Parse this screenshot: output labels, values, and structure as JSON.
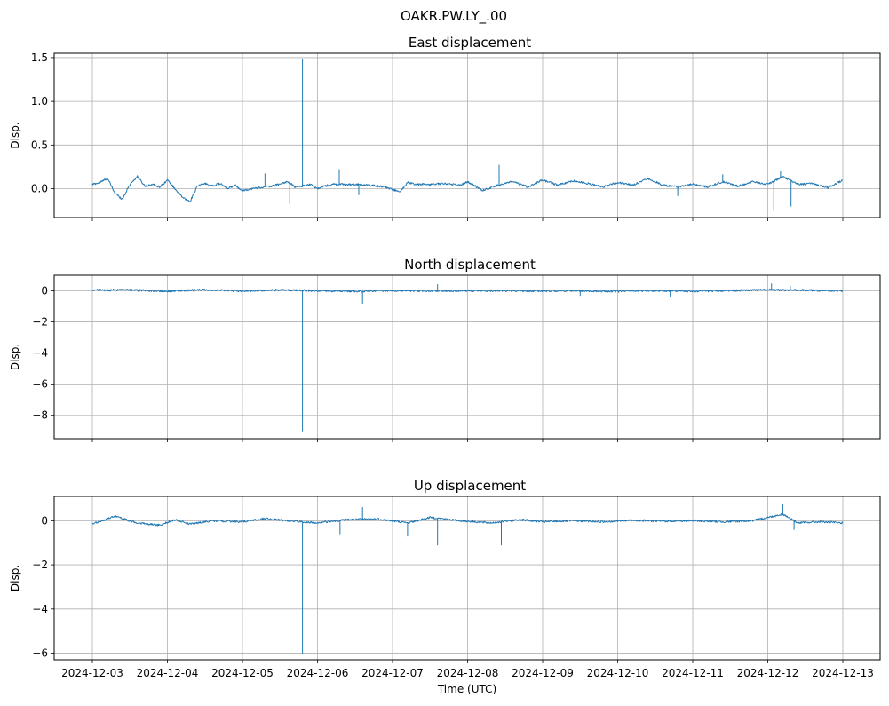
{
  "figure": {
    "suptitle": "OAKR.PW.LY_.00",
    "xlabel": "Time (UTC)",
    "x_tick_labels": [
      "2024-12-03",
      "2024-12-04",
      "2024-12-05",
      "2024-12-06",
      "2024-12-07",
      "2024-12-08",
      "2024-12-09",
      "2024-12-10",
      "2024-12-11",
      "2024-12-12",
      "2024-12-13"
    ]
  },
  "colors": {
    "line": "#1f77b4",
    "grid": "#b0b0b0",
    "axes": "#000000"
  },
  "chart_data": [
    {
      "type": "line",
      "title": "East displacement",
      "ylabel": "Disp.",
      "x_range": [
        "2024-12-03",
        "2024-12-13"
      ],
      "ylim": [
        -0.33,
        1.55
      ],
      "yticks": [
        0.0,
        0.5,
        1.0,
        1.5
      ],
      "ytick_labels": [
        "0.0",
        "0.5",
        "1.0",
        "1.5"
      ],
      "grid": true,
      "baseline": [
        [
          0,
          0.05
        ],
        [
          0.1,
          0.07
        ],
        [
          0.2,
          0.12
        ],
        [
          0.3,
          -0.05
        ],
        [
          0.4,
          -0.12
        ],
        [
          0.5,
          0.05
        ],
        [
          0.6,
          0.14
        ],
        [
          0.7,
          0.03
        ],
        [
          0.8,
          0.05
        ],
        [
          0.9,
          0.02
        ],
        [
          1.0,
          0.1
        ],
        [
          1.1,
          0.0
        ],
        [
          1.2,
          -0.1
        ],
        [
          1.3,
          -0.15
        ],
        [
          1.4,
          0.03
        ],
        [
          1.5,
          0.06
        ],
        [
          1.6,
          0.03
        ],
        [
          1.7,
          0.06
        ],
        [
          1.8,
          0.0
        ],
        [
          1.9,
          0.04
        ],
        [
          2.0,
          -0.02
        ],
        [
          2.2,
          0.01
        ],
        [
          2.4,
          0.03
        ],
        [
          2.6,
          0.08
        ],
        [
          2.7,
          0.02
        ],
        [
          2.8,
          0.03
        ],
        [
          2.9,
          0.05
        ],
        [
          3.0,
          0.0
        ],
        [
          3.1,
          0.03
        ],
        [
          3.2,
          0.05
        ],
        [
          3.3,
          0.05
        ],
        [
          3.5,
          0.05
        ],
        [
          3.7,
          0.04
        ],
        [
          3.9,
          0.02
        ],
        [
          4.1,
          -0.04
        ],
        [
          4.2,
          0.07
        ],
        [
          4.3,
          0.05
        ],
        [
          4.5,
          0.05
        ],
        [
          4.7,
          0.06
        ],
        [
          4.9,
          0.04
        ],
        [
          5.0,
          0.08
        ],
        [
          5.2,
          -0.02
        ],
        [
          5.4,
          0.04
        ],
        [
          5.6,
          0.08
        ],
        [
          5.8,
          0.02
        ],
        [
          6.0,
          0.1
        ],
        [
          6.2,
          0.04
        ],
        [
          6.4,
          0.09
        ],
        [
          6.6,
          0.06
        ],
        [
          6.8,
          0.02
        ],
        [
          7.0,
          0.07
        ],
        [
          7.2,
          0.04
        ],
        [
          7.4,
          0.12
        ],
        [
          7.6,
          0.04
        ],
        [
          7.8,
          0.02
        ],
        [
          8.0,
          0.05
        ],
        [
          8.2,
          0.02
        ],
        [
          8.4,
          0.08
        ],
        [
          8.6,
          0.03
        ],
        [
          8.8,
          0.08
        ],
        [
          9.0,
          0.05
        ],
        [
          9.2,
          0.14
        ],
        [
          9.4,
          0.05
        ],
        [
          9.6,
          0.06
        ],
        [
          9.8,
          0.01
        ],
        [
          10.0,
          0.1
        ]
      ],
      "spikes": [
        {
          "x": 2.8,
          "y": 1.48
        },
        {
          "x": 2.63,
          "y": -0.17
        },
        {
          "x": 2.3,
          "y": 0.17
        },
        {
          "x": 3.29,
          "y": 0.22
        },
        {
          "x": 3.55,
          "y": -0.07
        },
        {
          "x": 5.42,
          "y": 0.27
        },
        {
          "x": 7.8,
          "y": -0.08
        },
        {
          "x": 9.08,
          "y": -0.25
        },
        {
          "x": 9.17,
          "y": 0.2
        },
        {
          "x": 9.31,
          "y": -0.2
        },
        {
          "x": 8.4,
          "y": 0.16
        }
      ]
    },
    {
      "type": "line",
      "title": "North displacement",
      "ylabel": "Disp.",
      "x_range": [
        "2024-12-03",
        "2024-12-13"
      ],
      "ylim": [
        -9.5,
        1.0
      ],
      "yticks": [
        0,
        -2,
        -4,
        -6,
        -8
      ],
      "ytick_labels": [
        "0",
        "−2",
        "−4",
        "−6",
        "−8"
      ],
      "grid": true,
      "baseline": [
        [
          0,
          0.05
        ],
        [
          0.5,
          0.05
        ],
        [
          1.0,
          -0.02
        ],
        [
          1.5,
          0.07
        ],
        [
          2.0,
          -0.02
        ],
        [
          2.5,
          0.06
        ],
        [
          3.0,
          0.0
        ],
        [
          3.5,
          -0.03
        ],
        [
          4.0,
          0.02
        ],
        [
          4.5,
          0.0
        ],
        [
          5.0,
          0.01
        ],
        [
          5.5,
          0.0
        ],
        [
          6.0,
          -0.01
        ],
        [
          6.5,
          0.01
        ],
        [
          7.0,
          -0.04
        ],
        [
          7.5,
          0.02
        ],
        [
          8.0,
          -0.03
        ],
        [
          8.5,
          0.02
        ],
        [
          9.0,
          0.06
        ],
        [
          9.5,
          0.04
        ],
        [
          10.0,
          0.0
        ]
      ],
      "spikes": [
        {
          "x": 2.8,
          "y": -9.0
        },
        {
          "x": 3.6,
          "y": -0.8
        },
        {
          "x": 4.6,
          "y": 0.4
        },
        {
          "x": 6.5,
          "y": -0.3
        },
        {
          "x": 7.7,
          "y": -0.35
        },
        {
          "x": 9.05,
          "y": 0.45
        },
        {
          "x": 9.3,
          "y": 0.3
        }
      ]
    },
    {
      "type": "line",
      "title": "Up displacement",
      "ylabel": "Disp.",
      "x_range": [
        "2024-12-03",
        "2024-12-13"
      ],
      "ylim": [
        -6.3,
        1.1
      ],
      "yticks": [
        0,
        -2,
        -4,
        -6
      ],
      "ytick_labels": [
        "0",
        "−2",
        "−4",
        "−6"
      ],
      "grid": true,
      "baseline": [
        [
          0,
          -0.15
        ],
        [
          0.3,
          0.2
        ],
        [
          0.6,
          -0.1
        ],
        [
          0.9,
          -0.2
        ],
        [
          1.1,
          0.05
        ],
        [
          1.3,
          -0.15
        ],
        [
          1.6,
          0.0
        ],
        [
          2.0,
          -0.05
        ],
        [
          2.3,
          0.1
        ],
        [
          2.6,
          0.0
        ],
        [
          3.0,
          -0.1
        ],
        [
          3.4,
          0.05
        ],
        [
          3.8,
          0.08
        ],
        [
          4.2,
          -0.1
        ],
        [
          4.5,
          0.15
        ],
        [
          4.9,
          0.0
        ],
        [
          5.3,
          -0.1
        ],
        [
          5.7,
          0.05
        ],
        [
          6.0,
          -0.05
        ],
        [
          6.4,
          0.0
        ],
        [
          6.8,
          -0.05
        ],
        [
          7.2,
          0.02
        ],
        [
          7.6,
          -0.02
        ],
        [
          8.0,
          0.0
        ],
        [
          8.4,
          -0.05
        ],
        [
          8.8,
          0.0
        ],
        [
          9.2,
          0.3
        ],
        [
          9.4,
          -0.1
        ],
        [
          9.7,
          -0.05
        ],
        [
          10.0,
          -0.1
        ]
      ],
      "spikes": [
        {
          "x": 2.8,
          "y": -6.0
        },
        {
          "x": 3.3,
          "y": -0.6
        },
        {
          "x": 3.6,
          "y": 0.6
        },
        {
          "x": 4.2,
          "y": -0.7
        },
        {
          "x": 4.6,
          "y": -1.1
        },
        {
          "x": 5.45,
          "y": -1.1
        },
        {
          "x": 9.2,
          "y": 0.75
        },
        {
          "x": 9.35,
          "y": -0.4
        }
      ]
    }
  ]
}
